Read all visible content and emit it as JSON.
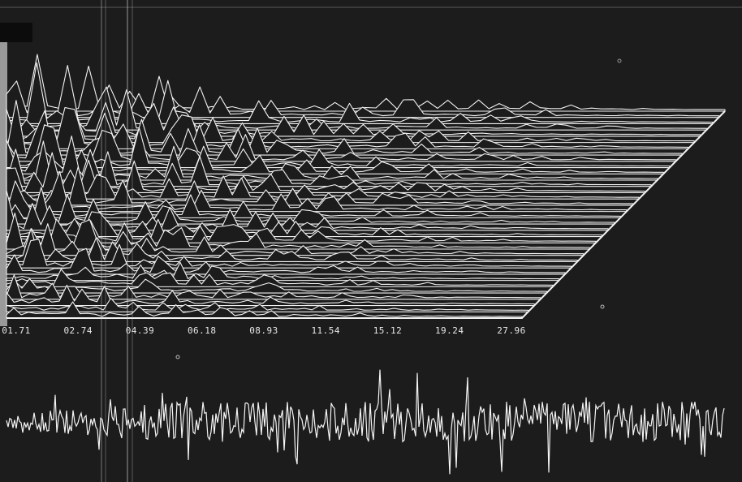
{
  "axis": {
    "labels": [
      "01.71",
      "02.74",
      "04.39",
      "06.18",
      "08.93",
      "11.54",
      "15.12",
      "19.24",
      "27.96"
    ]
  }
}
